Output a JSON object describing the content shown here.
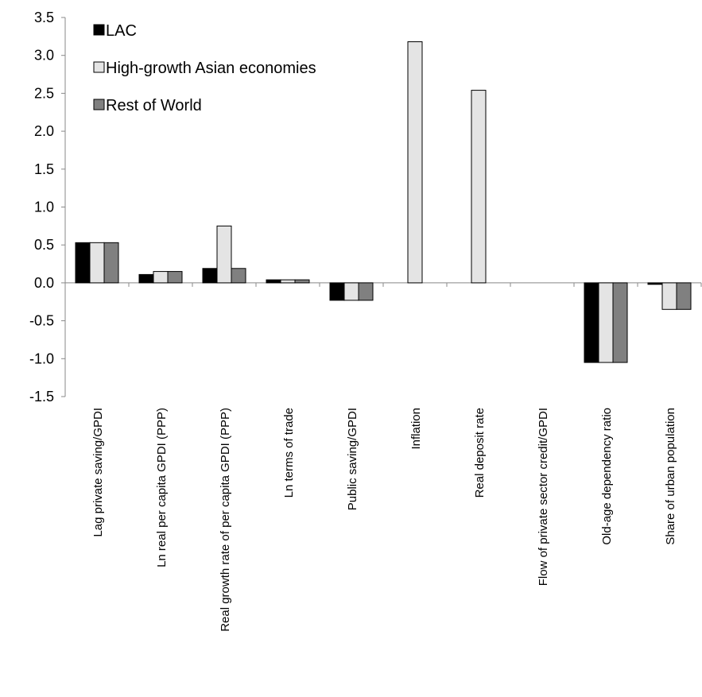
{
  "chart_data": {
    "type": "bar",
    "categories": [
      "Lag private saving/GPDI",
      "Ln real per capita GPDI (PPP)",
      "Real growth rate of per capita GPDI (PPP)",
      "Ln terms of trade",
      "Public saving/GPDI",
      "Inflation",
      "Real deposit rate",
      "Flow of private sector credit/GPDI",
      "Old-age dependency ratio",
      "Share of urban population"
    ],
    "series": [
      {
        "name": "LAC",
        "color": "#000000",
        "values": [
          0.53,
          0.11,
          0.19,
          0.04,
          -0.23,
          0,
          0,
          0,
          -1.05,
          -0.02
        ]
      },
      {
        "name": "High-growth Asian economies",
        "color": "#e4e4e4",
        "values": [
          0.53,
          0.15,
          0.75,
          0.04,
          -0.23,
          3.18,
          2.54,
          0,
          -1.05,
          -0.35
        ]
      },
      {
        "name": "Rest of World",
        "color": "#808080",
        "values": [
          0.53,
          0.15,
          0.19,
          0.04,
          -0.23,
          0,
          0,
          0,
          -1.05,
          -0.35
        ]
      }
    ],
    "ylim": [
      -1.5,
      3.5
    ],
    "yticks": [
      -1.5,
      {
        "value": -1,
        "label": "-1.0"
      },
      -0.5,
      {
        "value": 0,
        "label": "0.0"
      },
      0.5,
      {
        "value": 1,
        "label": "1.0"
      },
      1.5,
      {
        "value": 2,
        "label": "2.0"
      },
      2.5,
      {
        "value": 3,
        "label": "3.0"
      },
      3.5
    ],
    "legend": "upper-left"
  }
}
